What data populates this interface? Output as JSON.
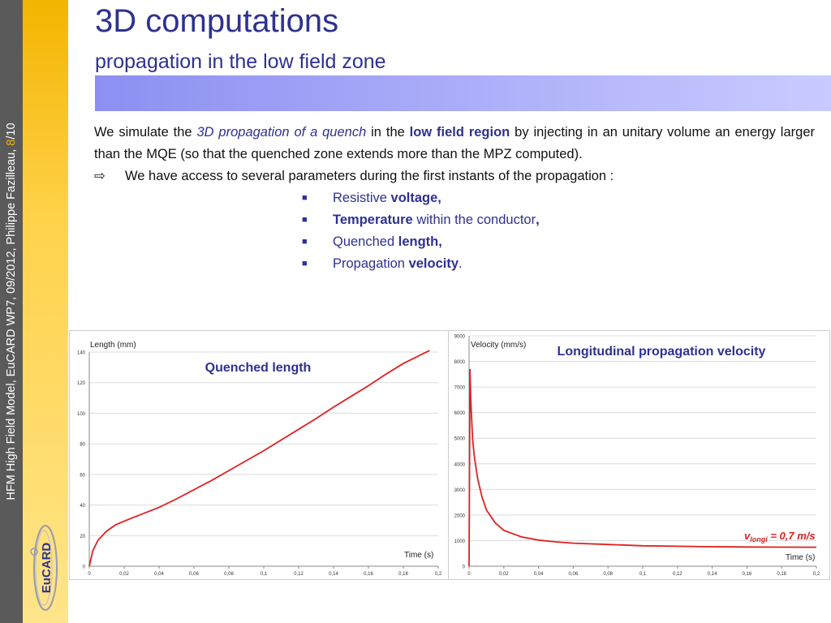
{
  "sidebar": {
    "footer_text": "HFM High Field Model, EuCARD WP7, 09/2012, Philippe Fazilleau, ",
    "page_current": "8",
    "page_total": "/10",
    "logo_text": "EuCARD"
  },
  "header": {
    "title": "3D computations",
    "subtitle": "propagation in the low field zone"
  },
  "body": {
    "p1": "We simulate the ",
    "p1_em": "3D propagation of a quench",
    "p1b": " in the ",
    "p1_strong": "low field region",
    "p1c": " by injecting in an unitary volume an energy larger than the MQE (so that the quenched zone extends more than the MPZ computed).",
    "arrow_symbol": "⇨",
    "line2": "We have access to several parameters during the first instants of the propagation :",
    "bullet_symbol": "■",
    "b1a": "Resistive ",
    "b1b": "voltage,",
    "b2a": "Temperature",
    "b2b": " within the conductor",
    "b2c": ",",
    "b3a": "Quenched ",
    "b3b": "length,",
    "b4a": "Propagation ",
    "b4b": "velocity",
    "b4c": "."
  },
  "chart_data": [
    {
      "type": "line",
      "title": "Quenched length",
      "ylabel": "Length (mm)",
      "xlabel": "Time (s)",
      "xlim": [
        0,
        0.2
      ],
      "ylim": [
        0,
        140
      ],
      "xticks": [
        "0",
        "0,02",
        "0,04",
        "0,06",
        "0,08",
        "0,1",
        "0,12",
        "0,14",
        "0,16",
        "0,18",
        "0,2"
      ],
      "yticks": [
        "0",
        "20",
        "40",
        "60",
        "80",
        "100",
        "120",
        "140"
      ],
      "series": [
        {
          "name": "Quenched length",
          "x": [
            0,
            0.002,
            0.005,
            0.01,
            0.015,
            0.02,
            0.03,
            0.04,
            0.05,
            0.06,
            0.07,
            0.08,
            0.09,
            0.1,
            0.11,
            0.12,
            0.13,
            0.14,
            0.15,
            0.16,
            0.17,
            0.18,
            0.195
          ],
          "y": [
            0,
            10,
            17,
            23,
            27,
            29.5,
            34,
            38.5,
            44,
            50,
            56,
            62.5,
            69,
            75.5,
            82.5,
            89.5,
            96.5,
            104,
            111,
            118,
            125.5,
            132.5,
            141
          ]
        }
      ]
    },
    {
      "type": "line",
      "title": "Longitudinal propagation velocity",
      "ylabel": "Velocity (mm/s)",
      "xlabel": "Time (s)",
      "annotation_v": "v",
      "annotation_sub": "longi",
      "annotation_rest": " = 0,7 m/s",
      "xlim": [
        0,
        0.2
      ],
      "ylim": [
        0,
        9000
      ],
      "xticks": [
        "0",
        "0,02",
        "0,04",
        "0,06",
        "0,08",
        "0,1",
        "0,12",
        "0,14",
        "0,16",
        "0,18",
        "0,2"
      ],
      "yticks": [
        "0",
        "1000",
        "2000",
        "3000",
        "4000",
        "5000",
        "6000",
        "7000",
        "8000",
        "9000"
      ],
      "series": [
        {
          "name": "Velocity",
          "x": [
            0,
            0.0005,
            0.001,
            0.002,
            0.003,
            0.005,
            0.0075,
            0.01,
            0.015,
            0.02,
            0.03,
            0.04,
            0.05,
            0.06,
            0.08,
            0.1,
            0.12,
            0.14,
            0.16,
            0.18,
            0.2
          ],
          "y": [
            0,
            7700,
            6500,
            5000,
            4300,
            3400,
            2700,
            2200,
            1700,
            1400,
            1150,
            1020,
            950,
            900,
            850,
            800,
            780,
            760,
            750,
            745,
            740
          ]
        }
      ]
    }
  ]
}
